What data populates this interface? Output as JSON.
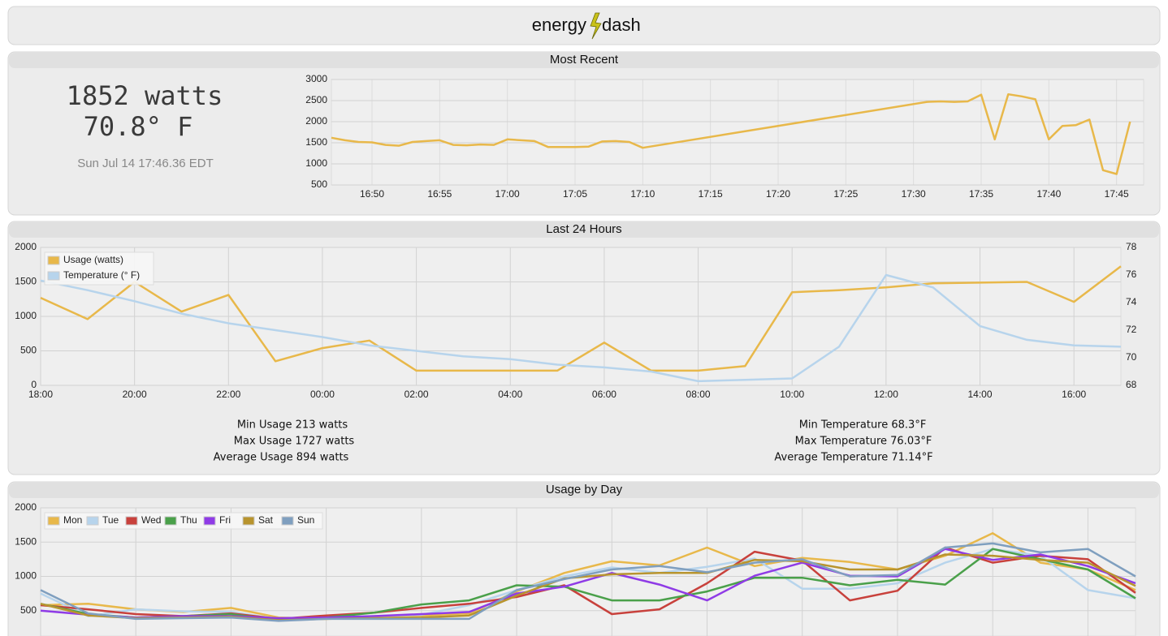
{
  "header": {
    "left": "energy",
    "right": "dash"
  },
  "most_recent": {
    "title": "Most Recent",
    "power": "1852 watts",
    "temperature": "70.8° F",
    "timestamp": "Sun Jul 14 17:46.36 EDT"
  },
  "last_24_hours": {
    "title": "Last 24 Hours",
    "usage_stats": [
      "Min Usage 213 watts",
      "Max Usage 1727 watts",
      "Average Usage 894 watts"
    ],
    "temperature_stats": [
      "Min Temperature 68.3°F",
      "Max Temperature 76.03°F",
      "Average Temperature 71.14°F"
    ]
  },
  "usage_by_day": {
    "title": "Usage by Day"
  },
  "chart_data": [
    {
      "type": "line",
      "x": [
        "16:47",
        "16:48",
        "16:49",
        "16:50",
        "16:51",
        "16:52",
        "16:53",
        "16:54",
        "16:55",
        "16:56",
        "16:57",
        "16:58",
        "16:59",
        "17:00",
        "17:01",
        "17:02",
        "17:03",
        "17:04",
        "17:05",
        "17:06",
        "17:07",
        "17:08",
        "17:09",
        "17:10",
        "17:31",
        "17:32",
        "17:33",
        "17:34",
        "17:35",
        "17:36",
        "17:37",
        "17:38",
        "17:39",
        "17:40",
        "17:41",
        "17:42",
        "17:43",
        "17:44",
        "17:45",
        "17:46"
      ],
      "series": [
        {
          "color": "#e8b84a",
          "values": [
            1620,
            1560,
            1520,
            1510,
            1450,
            1430,
            1520,
            1540,
            1560,
            1450,
            1440,
            1460,
            1450,
            1580,
            1560,
            1540,
            1400,
            1400,
            1400,
            1410,
            1530,
            1540,
            1520,
            1380,
            2470,
            2480,
            2470,
            2480,
            2640,
            1580,
            2650,
            2600,
            2530,
            1580,
            1900,
            1920,
            2050,
            850,
            760,
            2000
          ]
        }
      ],
      "xlim": [
        "16:47",
        "17:47"
      ],
      "xticks": [
        "16:50",
        "16:55",
        "17:00",
        "17:05",
        "17:10",
        "17:15",
        "17:20",
        "17:25",
        "17:30",
        "17:35",
        "17:40",
        "17:45"
      ],
      "ylim": [
        500,
        3000
      ],
      "yticks": [
        500,
        1000,
        1500,
        2000,
        2500,
        3000
      ],
      "grid": true
    },
    {
      "type": "line",
      "categories": [
        "18:00",
        null,
        "20:00",
        null,
        "22:00",
        null,
        "00:00",
        null,
        "02:00",
        null,
        "04:00",
        null,
        "06:00",
        null,
        "08:00",
        null,
        "10:00",
        null,
        "12:00",
        null,
        "14:00",
        null,
        "16:00",
        null
      ],
      "series": [
        {
          "name": "Usage (watts)",
          "color": "#e8b84a",
          "values": [
            1270,
            960,
            1500,
            1070,
            1310,
            350,
            540,
            650,
            213,
            213,
            213,
            213,
            620,
            213,
            213,
            280,
            1350,
            1380,
            1420,
            1480,
            1490,
            1500,
            1210,
            1727
          ]
        },
        {
          "name": "Temperature (° F)",
          "color": "#b7d4ec",
          "axis": "y2",
          "values": [
            75.6,
            74.9,
            74.1,
            73.2,
            72.5,
            72.0,
            71.5,
            70.9,
            70.5,
            70.1,
            69.9,
            69.5,
            69.3,
            69.0,
            68.3,
            68.4,
            68.5,
            70.8,
            76.0,
            75.1,
            72.3,
            71.3,
            70.9,
            70.8
          ]
        }
      ],
      "ylim": [
        0,
        2000
      ],
      "yticks": [
        0,
        500,
        1000,
        1500,
        2000
      ],
      "y2lim": [
        68,
        78
      ],
      "y2ticks": [
        68,
        70,
        72,
        74,
        76,
        78
      ],
      "grid": true,
      "legend": "upper left"
    },
    {
      "type": "line",
      "categories": [
        null,
        null,
        null,
        null,
        null,
        null,
        null,
        null,
        null,
        null,
        null,
        null,
        null,
        null,
        null,
        null,
        null,
        null,
        null,
        null,
        null,
        null,
        null,
        null
      ],
      "series": [
        {
          "name": "Mon",
          "color": "#e8b84a",
          "values": [
            580,
            600,
            520,
            480,
            540,
            400,
            380,
            400,
            430,
            460,
            780,
            1050,
            1220,
            1160,
            1420,
            1150,
            1270,
            1210,
            1100,
            1300,
            1630,
            1200,
            1100,
            800
          ]
        },
        {
          "name": "Tue",
          "color": "#b7d4ec",
          "values": [
            750,
            420,
            520,
            490,
            480,
            380,
            390,
            420,
            440,
            580,
            800,
            1000,
            1130,
            1050,
            1140,
            1260,
            820,
            820,
            900,
            1200,
            1400,
            1300,
            800,
            680
          ]
        },
        {
          "name": "Wed",
          "color": "#c8413c",
          "values": [
            580,
            520,
            450,
            420,
            460,
            380,
            430,
            470,
            540,
            600,
            700,
            870,
            450,
            520,
            900,
            1360,
            1230,
            650,
            790,
            1420,
            1200,
            1300,
            1250,
            760
          ]
        },
        {
          "name": "Thu",
          "color": "#4aa04a",
          "values": [
            600,
            450,
            400,
            420,
            450,
            360,
            400,
            470,
            590,
            650,
            870,
            850,
            650,
            650,
            780,
            980,
            980,
            870,
            950,
            880,
            1400,
            1250,
            1100,
            680
          ]
        },
        {
          "name": "Fri",
          "color": "#8f3be6",
          "values": [
            500,
            440,
            400,
            420,
            420,
            390,
            400,
            420,
            450,
            480,
            750,
            850,
            1050,
            880,
            650,
            1010,
            1200,
            1010,
            1000,
            1400,
            1240,
            1320,
            1150,
            900
          ]
        },
        {
          "name": "Sat",
          "color": "#b8942e",
          "values": [
            600,
            430,
            390,
            400,
            410,
            360,
            380,
            390,
            400,
            430,
            720,
            970,
            1030,
            1050,
            1050,
            1240,
            1220,
            1100,
            1100,
            1320,
            1300,
            1240,
            1200,
            860
          ]
        },
        {
          "name": "Sun",
          "color": "#7f9fbf",
          "values": [
            800,
            460,
            380,
            390,
            400,
            350,
            380,
            380,
            380,
            380,
            800,
            960,
            1100,
            1150,
            1060,
            1200,
            1250,
            1000,
            1020,
            1420,
            1480,
            1350,
            1400,
            1000
          ]
        }
      ],
      "ylim": [
        0,
        2000
      ],
      "yticks": [
        500,
        1000,
        1500,
        2000
      ],
      "grid": true,
      "legend": "upper left"
    }
  ]
}
